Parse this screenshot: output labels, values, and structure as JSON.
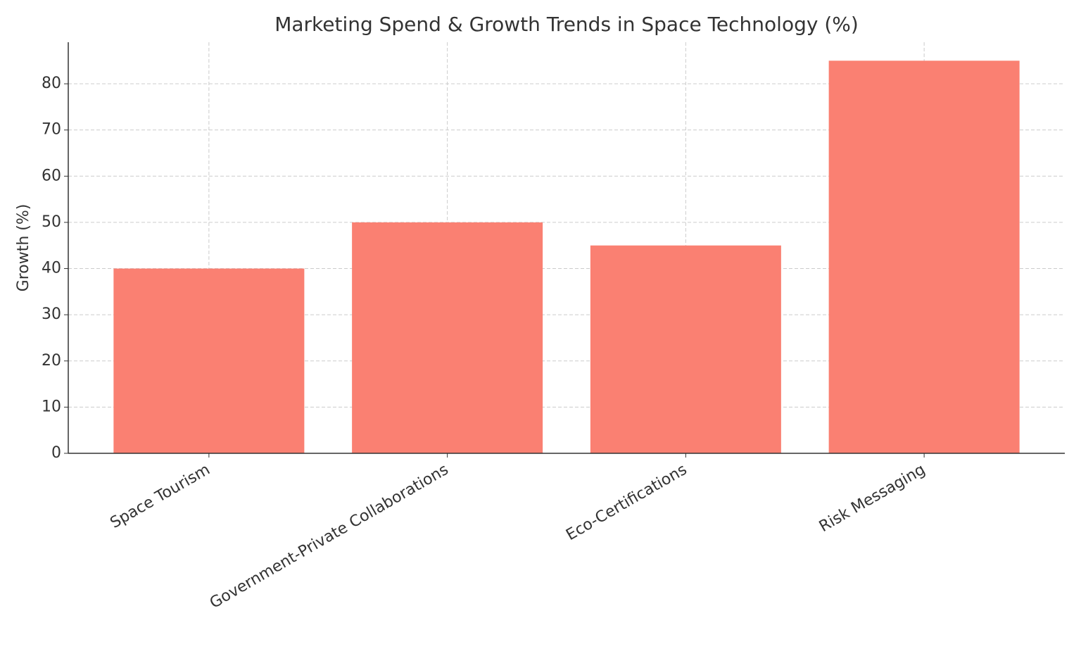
{
  "chart_data": {
    "type": "bar",
    "title": "Marketing Spend & Growth Trends in Space Technology (%)",
    "y_label": "Growth (%)",
    "categories": [
      "Space Tourism",
      "Government-Private Collaborations",
      "Eco-Certifications",
      "Risk Messaging"
    ],
    "values": [
      40,
      50,
      45,
      85
    ],
    "color": "#fa8072",
    "ylim": [
      0,
      89
    ],
    "yticks": [
      0,
      10,
      20,
      30,
      40,
      50,
      60,
      70,
      80
    ],
    "grid": true
  }
}
